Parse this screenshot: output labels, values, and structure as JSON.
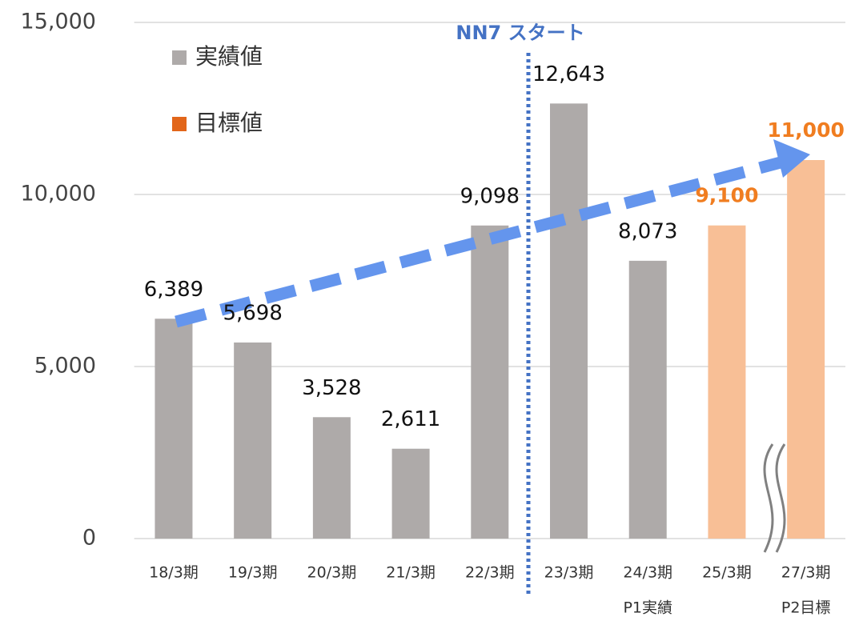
{
  "chart_data": {
    "type": "bar",
    "annotation": "NN7 スタート",
    "categories": [
      "18/3期",
      "19/3期",
      "20/3期",
      "21/3期",
      "22/3期",
      "23/3期",
      "24/3期",
      "25/3期",
      "27/3期"
    ],
    "sub_labels": [
      null,
      null,
      null,
      null,
      null,
      null,
      "P1実績",
      null,
      "P2目標"
    ],
    "series": [
      {
        "name": "実績値",
        "color": "#aeaaa9",
        "legend_color": "#aeaaa9",
        "label_color": "#111111",
        "values": [
          6389,
          5698,
          3528,
          2611,
          9098,
          12643,
          8073,
          null,
          null
        ],
        "value_labels": [
          "6,389",
          "5,698",
          "3,528",
          "2,611",
          "9,098",
          "12,643",
          "8,073",
          null,
          null
        ]
      },
      {
        "name": "目標値",
        "color": "#f8bf96",
        "legend_color": "#e2661a",
        "label_color": "#f07d20",
        "values": [
          null,
          null,
          null,
          null,
          null,
          null,
          null,
          9100,
          11000
        ],
        "value_labels": [
          null,
          null,
          null,
          null,
          null,
          null,
          null,
          "9,100",
          "11,000"
        ]
      }
    ],
    "ylim": [
      0,
      15000
    ],
    "yticks": [
      0,
      {
        "value": 5000,
        "label": "5,000"
      },
      {
        "value": 10000,
        "label": "10,000"
      },
      {
        "value": 15000,
        "label": "15,000"
      }
    ],
    "grid": true
  }
}
